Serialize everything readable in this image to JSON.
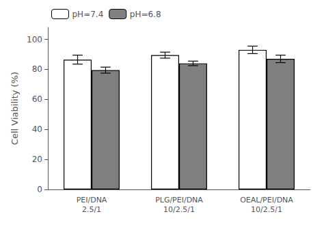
{
  "chart_data": {
    "type": "bar",
    "categories": [
      "PEI/DNA\n2.5/1",
      "PLG/PEI/DNA\n10/2.5/1",
      "OEAL/PEI/DNA\n10/2.5/1"
    ],
    "series": [
      {
        "name": "pH=7.4",
        "color": "#FFFFFF",
        "values": [
          86.5,
          89.5,
          93.0
        ],
        "errors": [
          3.0,
          2.0,
          2.5
        ]
      },
      {
        "name": "pH=6.8",
        "color": "#808080",
        "values": [
          79.5,
          84.0,
          87.0
        ],
        "errors": [
          2.0,
          1.5,
          2.5
        ]
      }
    ],
    "ylabel": "Cell Viability (%)",
    "ylim": [
      0,
      108
    ],
    "yticks": [
      0,
      20,
      40,
      60,
      80,
      100
    ],
    "grid": false,
    "legend": "upper left"
  }
}
